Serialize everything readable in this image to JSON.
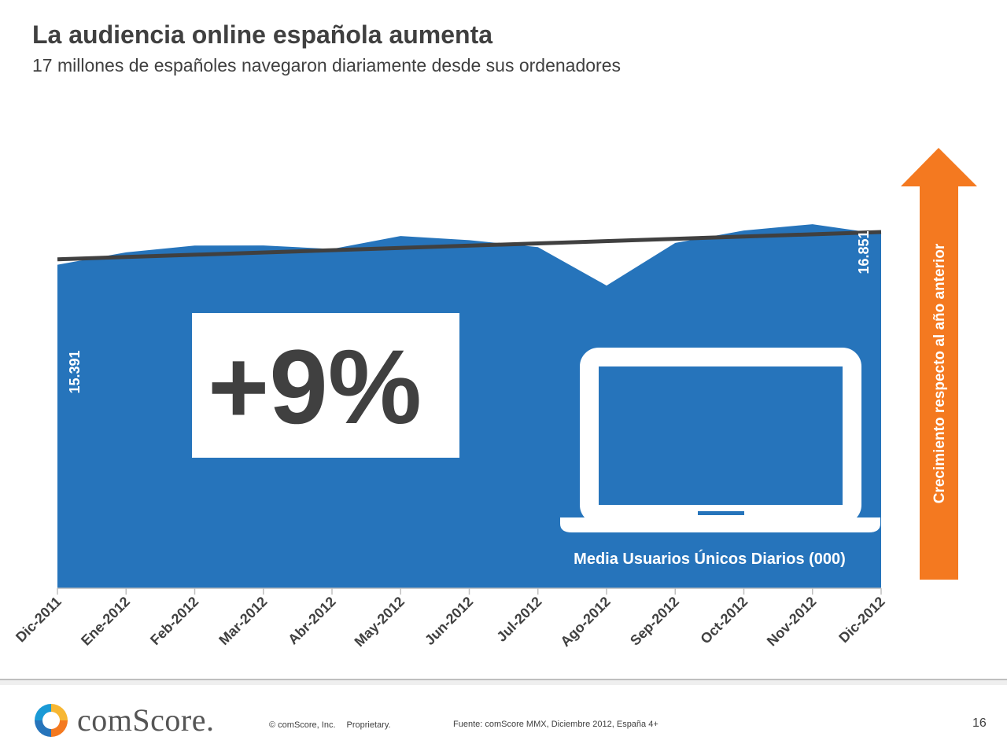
{
  "header": {
    "title": "La audiencia online española aumenta",
    "subtitle": "17 millones de españoles navegaron diariamente desde sus ordenadores"
  },
  "chart_data": {
    "type": "area",
    "title": "La audiencia online española aumenta",
    "categories": [
      "Dic-2011",
      "Ene-2012",
      "Feb-2012",
      "Mar-2012",
      "Abr-2012",
      "May-2012",
      "Jun-2012",
      "Jul-2012",
      "Ago-2012",
      "Sep-2012",
      "Oct-2012",
      "Nov-2012",
      "Dic-2012"
    ],
    "series": [
      {
        "name": "Media Usuarios Únicos Diarios (000)",
        "values": [
          15391,
          15980,
          16300,
          16310,
          16140,
          16760,
          16560,
          16230,
          14400,
          16430,
          17020,
          17320,
          16851
        ]
      }
    ],
    "trendline": {
      "start": 15650,
      "end": 16950
    },
    "data_labels": [
      {
        "category": "Dic-2011",
        "text": "15.391"
      },
      {
        "category": "Dic-2012",
        "text": "16.851"
      }
    ],
    "ylim": [
      0,
      22000
    ],
    "legend": "bottom-right inside plot",
    "callout": "+9%",
    "arrow_label": "Crecimiento respecto al año anterior",
    "colors": {
      "area": "#2674bb",
      "trend": "#404040",
      "arrow": "#f47920",
      "text": "#404040"
    }
  },
  "icons": {
    "laptop": "laptop-icon"
  },
  "footer": {
    "logo_text": "comScore.",
    "copyright": "© comScore, Inc.",
    "proprietary": "Proprietary.",
    "source": "Fuente: comScore MMX, Diciembre 2012, España 4+",
    "page_number": "16"
  }
}
